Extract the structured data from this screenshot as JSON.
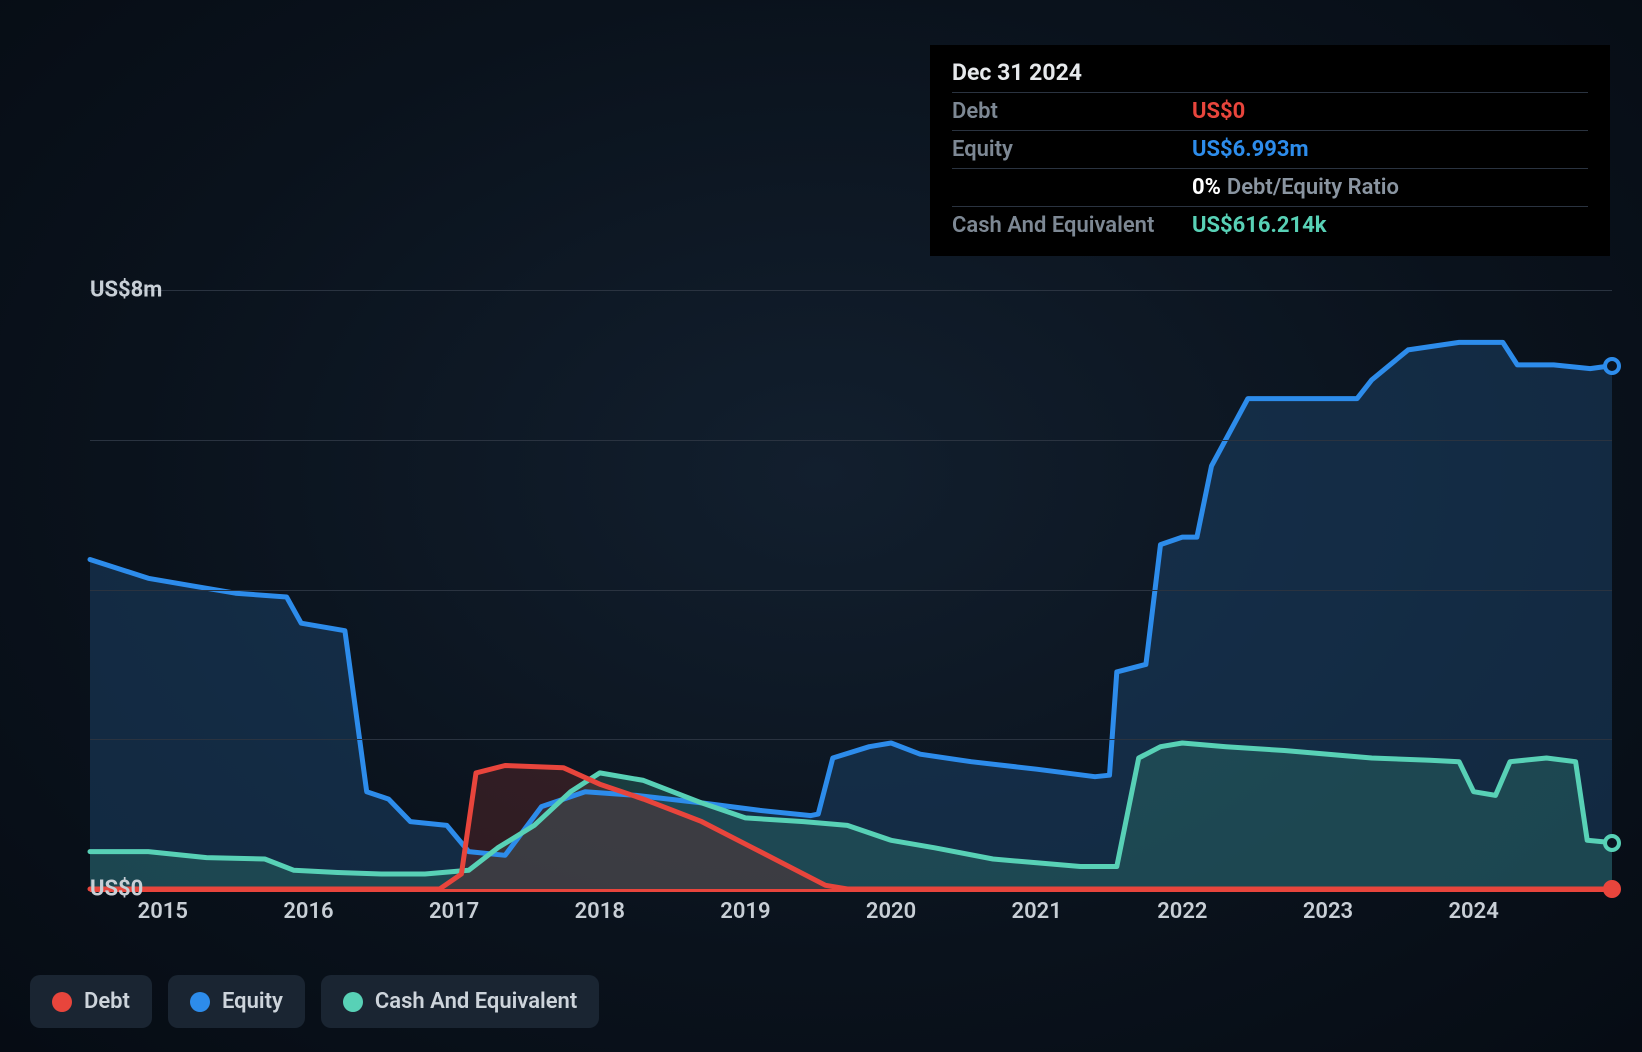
{
  "chart": {
    "type": "area-line",
    "background_gradient": [
      "#121f2e",
      "#0a121c",
      "#060c14"
    ],
    "grid_color": "#2a3340",
    "text_color": "#c8cfd6",
    "x_axis_years": [
      "2015",
      "2016",
      "2017",
      "2018",
      "2019",
      "2020",
      "2021",
      "2022",
      "2023",
      "2024"
    ],
    "y_ticks": [
      {
        "value": 0,
        "label": "US$0"
      },
      {
        "value": 8,
        "label": "US$8m"
      }
    ],
    "ylim": [
      0,
      8
    ],
    "gridlines_y": [
      0,
      2,
      4,
      6,
      8
    ],
    "xlim": [
      2014.5,
      2024.95
    ],
    "series": [
      {
        "name": "Equity",
        "color": "#2d8ceb",
        "fill_color": "#1b3f64",
        "fill_opacity": 0.55,
        "line_width": 5,
        "points": [
          [
            2014.5,
            4.4
          ],
          [
            2014.9,
            4.15
          ],
          [
            2015.2,
            4.05
          ],
          [
            2015.5,
            3.95
          ],
          [
            2015.85,
            3.9
          ],
          [
            2015.95,
            3.55
          ],
          [
            2016.25,
            3.45
          ],
          [
            2016.4,
            1.3
          ],
          [
            2016.55,
            1.2
          ],
          [
            2016.7,
            0.9
          ],
          [
            2016.95,
            0.85
          ],
          [
            2017.1,
            0.5
          ],
          [
            2017.35,
            0.45
          ],
          [
            2017.6,
            1.1
          ],
          [
            2017.9,
            1.3
          ],
          [
            2018.25,
            1.25
          ],
          [
            2018.7,
            1.15
          ],
          [
            2019.1,
            1.05
          ],
          [
            2019.45,
            0.98
          ],
          [
            2019.5,
            1.0
          ],
          [
            2019.6,
            1.75
          ],
          [
            2019.85,
            1.9
          ],
          [
            2020.0,
            1.95
          ],
          [
            2020.2,
            1.8
          ],
          [
            2020.55,
            1.7
          ],
          [
            2021.0,
            1.6
          ],
          [
            2021.4,
            1.5
          ],
          [
            2021.5,
            1.52
          ],
          [
            2021.55,
            2.9
          ],
          [
            2021.75,
            3.0
          ],
          [
            2021.85,
            4.6
          ],
          [
            2022.0,
            4.7
          ],
          [
            2022.1,
            4.7
          ],
          [
            2022.2,
            5.65
          ],
          [
            2022.45,
            6.55
          ],
          [
            2022.9,
            6.55
          ],
          [
            2023.2,
            6.55
          ],
          [
            2023.3,
            6.8
          ],
          [
            2023.55,
            7.2
          ],
          [
            2023.9,
            7.3
          ],
          [
            2024.2,
            7.3
          ],
          [
            2024.3,
            7.0
          ],
          [
            2024.55,
            7.0
          ],
          [
            2024.8,
            6.95
          ],
          [
            2024.95,
            6.99
          ]
        ]
      },
      {
        "name": "Cash And Equivalent",
        "color": "#58d1b6",
        "fill_color": "#2b6a63",
        "fill_opacity": 0.45,
        "line_width": 5,
        "points": [
          [
            2014.5,
            0.5
          ],
          [
            2014.9,
            0.5
          ],
          [
            2015.0,
            0.48
          ],
          [
            2015.3,
            0.42
          ],
          [
            2015.7,
            0.4
          ],
          [
            2015.9,
            0.25
          ],
          [
            2016.2,
            0.22
          ],
          [
            2016.5,
            0.2
          ],
          [
            2016.8,
            0.2
          ],
          [
            2017.1,
            0.25
          ],
          [
            2017.3,
            0.55
          ],
          [
            2017.55,
            0.85
          ],
          [
            2017.8,
            1.3
          ],
          [
            2018.0,
            1.55
          ],
          [
            2018.3,
            1.45
          ],
          [
            2018.7,
            1.15
          ],
          [
            2019.0,
            0.95
          ],
          [
            2019.4,
            0.9
          ],
          [
            2019.7,
            0.85
          ],
          [
            2020.0,
            0.65
          ],
          [
            2020.3,
            0.55
          ],
          [
            2020.7,
            0.4
          ],
          [
            2021.0,
            0.35
          ],
          [
            2021.3,
            0.3
          ],
          [
            2021.55,
            0.3
          ],
          [
            2021.7,
            1.75
          ],
          [
            2021.85,
            1.9
          ],
          [
            2022.0,
            1.95
          ],
          [
            2022.3,
            1.9
          ],
          [
            2022.7,
            1.85
          ],
          [
            2023.0,
            1.8
          ],
          [
            2023.3,
            1.75
          ],
          [
            2023.7,
            1.72
          ],
          [
            2023.9,
            1.7
          ],
          [
            2024.0,
            1.3
          ],
          [
            2024.15,
            1.25
          ],
          [
            2024.25,
            1.7
          ],
          [
            2024.5,
            1.75
          ],
          [
            2024.7,
            1.7
          ],
          [
            2024.78,
            0.65
          ],
          [
            2024.95,
            0.62
          ]
        ]
      },
      {
        "name": "Debt",
        "color": "#e8453c",
        "fill_color": "#6a2b2b",
        "fill_opacity": 0.4,
        "line_width": 5,
        "points": [
          [
            2014.5,
            0.0
          ],
          [
            2016.9,
            0.0
          ],
          [
            2017.05,
            0.2
          ],
          [
            2017.15,
            1.55
          ],
          [
            2017.35,
            1.65
          ],
          [
            2017.75,
            1.62
          ],
          [
            2018.0,
            1.4
          ],
          [
            2018.3,
            1.2
          ],
          [
            2018.7,
            0.9
          ],
          [
            2019.05,
            0.55
          ],
          [
            2019.35,
            0.25
          ],
          [
            2019.55,
            0.05
          ],
          [
            2019.7,
            0.0
          ],
          [
            2024.95,
            0.0
          ]
        ]
      }
    ],
    "end_markers": [
      {
        "series": "Equity",
        "color": "#2d8ceb",
        "fill": "#0a1420",
        "x": 2024.95,
        "y": 6.99
      },
      {
        "series": "Cash And Equivalent",
        "color": "#58d1b6",
        "fill": "#0a1420",
        "x": 2024.95,
        "y": 0.62
      },
      {
        "series": "Debt",
        "color": "#e8453c",
        "fill": "#e8453c",
        "x": 2024.95,
        "y": 0.0
      }
    ]
  },
  "tooltip": {
    "title": "Dec 31 2024",
    "rows": [
      {
        "label": "Debt",
        "value": "US$0",
        "color": "#e8453c"
      },
      {
        "label": "Equity",
        "value": "US$6.993m",
        "color": "#2d8ceb"
      },
      {
        "label": "",
        "value": "0%",
        "color": "#ffffff",
        "extra": "Debt/Equity Ratio"
      },
      {
        "label": "Cash And Equivalent",
        "value": "US$616.214k",
        "color": "#58d1b6"
      }
    ]
  },
  "legend": [
    {
      "label": "Debt",
      "color": "#e8453c"
    },
    {
      "label": "Equity",
      "color": "#2d8ceb"
    },
    {
      "label": "Cash And Equivalent",
      "color": "#58d1b6"
    }
  ]
}
